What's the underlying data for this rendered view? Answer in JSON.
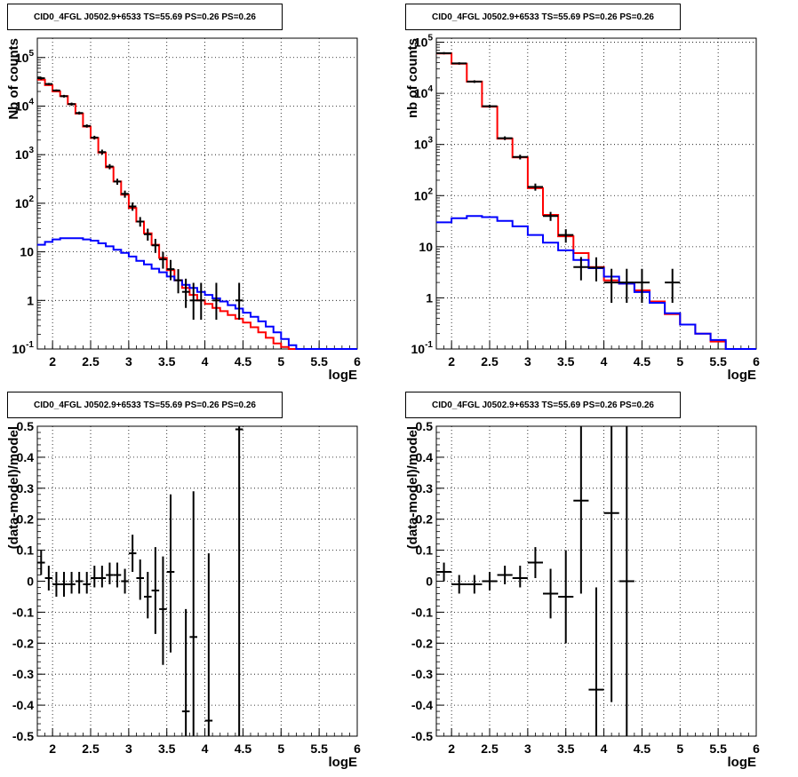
{
  "colors": {
    "data": "#000000",
    "total_model": "#ff0000",
    "component_model": "#0000ff",
    "grid": "#000000"
  },
  "chart_data": [
    {
      "panel": "top-left",
      "type": "line",
      "title": "CID0_4FGL J0502.9+6533 TS=55.69 PS=0.26 PS=0.26",
      "xlabel": "logE",
      "ylabel": "Nb of counts",
      "xlim": [
        1.8,
        6.0
      ],
      "ylim": [
        0.1,
        250000
      ],
      "yscale": "log",
      "grid": true,
      "xticks": [
        "2",
        "2.5",
        "3",
        "3.5",
        "4",
        "4.5",
        "5",
        "5.5",
        "6"
      ],
      "yticks": [
        "10^-1",
        "1",
        "10",
        "10^2",
        "10^3",
        "10^4",
        "10^5"
      ],
      "bin_edges": [
        1.8,
        1.9,
        2.0,
        2.1,
        2.2,
        2.3,
        2.4,
        2.5,
        2.6,
        2.7,
        2.8,
        2.9,
        3.0,
        3.1,
        3.2,
        3.3,
        3.4,
        3.5,
        3.6,
        3.7,
        3.8,
        3.9,
        4.0,
        4.1,
        4.2,
        4.3,
        4.4,
        4.5,
        4.6,
        4.7,
        4.8,
        4.9,
        5.0,
        5.1,
        5.2,
        5.3,
        5.4,
        5.5,
        5.6,
        5.7,
        5.8,
        5.9,
        6.0
      ],
      "series": [
        {
          "kind": "total_model",
          "values": [
            35000,
            27000,
            20000,
            16000,
            11000,
            7000,
            3800,
            2200,
            1100,
            550,
            280,
            150,
            80,
            42,
            24,
            14,
            7.5,
            4.2,
            2.6,
            1.8,
            1.3,
            1.0,
            0.85,
            0.7,
            0.6,
            0.5,
            0.42,
            0.35,
            0.28,
            0.22,
            0.17,
            0.13,
            0.11,
            0.1,
            0.1,
            0.1,
            0.1,
            0.1,
            0.1,
            0.1,
            0.1,
            0.1
          ]
        },
        {
          "kind": "component_model",
          "values": [
            14,
            16,
            18,
            19,
            19,
            19,
            18,
            17,
            15,
            13,
            11,
            9.5,
            8,
            6.5,
            5.5,
            4.5,
            3.8,
            3.1,
            2.6,
            2.1,
            1.8,
            1.5,
            1.3,
            1.1,
            0.95,
            0.8,
            0.68,
            0.56,
            0.46,
            0.37,
            0.29,
            0.22,
            0.16,
            0.12,
            0.1,
            0.1,
            0.1,
            0.1,
            0.1,
            0.1,
            0.1,
            0.1
          ]
        },
        {
          "kind": "data",
          "points": [
            {
              "x": 1.85,
              "y": 37500,
              "lo": 35000,
              "hi": 40000
            },
            {
              "x": 1.95,
              "y": 28500,
              "lo": 27000,
              "hi": 30000
            },
            {
              "x": 2.05,
              "y": 21000,
              "lo": 20000,
              "hi": 22000
            },
            {
              "x": 2.15,
              "y": 16000,
              "lo": 15000,
              "hi": 17000
            },
            {
              "x": 2.25,
              "y": 11000,
              "lo": 10200,
              "hi": 11800
            },
            {
              "x": 2.35,
              "y": 7200,
              "lo": 6700,
              "hi": 7700
            },
            {
              "x": 2.45,
              "y": 3900,
              "lo": 3600,
              "hi": 4200
            },
            {
              "x": 2.55,
              "y": 2250,
              "lo": 2050,
              "hi": 2450
            },
            {
              "x": 2.65,
              "y": 1130,
              "lo": 1000,
              "hi": 1270
            },
            {
              "x": 2.75,
              "y": 570,
              "lo": 500,
              "hi": 640
            },
            {
              "x": 2.85,
              "y": 280,
              "lo": 240,
              "hi": 320
            },
            {
              "x": 2.95,
              "y": 156,
              "lo": 130,
              "hi": 182
            },
            {
              "x": 3.05,
              "y": 86,
              "lo": 70,
              "hi": 104
            },
            {
              "x": 3.15,
              "y": 42,
              "lo": 33,
              "hi": 52
            },
            {
              "x": 3.25,
              "y": 23,
              "lo": 17,
              "hi": 30
            },
            {
              "x": 3.35,
              "y": 13.6,
              "lo": 9.5,
              "hi": 18.5
            },
            {
              "x": 3.45,
              "y": 7,
              "lo": 4.5,
              "hi": 10
            },
            {
              "x": 3.55,
              "y": 4.4,
              "lo": 2.6,
              "hi": 6.8
            },
            {
              "x": 3.65,
              "y": 2.6,
              "lo": 1.4,
              "hi": 4.4
            },
            {
              "x": 3.75,
              "y": 1.5,
              "lo": 0.7,
              "hi": 2.8
            },
            {
              "x": 3.85,
              "y": 1.0,
              "lo": 0.4,
              "hi": 2.3
            },
            {
              "x": 3.95,
              "y": 1.0,
              "lo": 0.4,
              "hi": 2.3
            },
            {
              "x": 4.05,
              "y": 0.1,
              "lo": 0.1,
              "hi": 0.1
            },
            {
              "x": 4.15,
              "y": 1.0,
              "lo": 0.4,
              "hi": 2.3
            },
            {
              "x": 4.25,
              "y": 0.1,
              "lo": 0.1,
              "hi": 0.1
            },
            {
              "x": 4.35,
              "y": 0.1,
              "lo": 0.1,
              "hi": 0.1
            },
            {
              "x": 4.45,
              "y": 1.0,
              "lo": 0.4,
              "hi": 2.3
            }
          ]
        }
      ]
    },
    {
      "panel": "top-right",
      "type": "line",
      "title": "CID0_4FGL J0502.9+6533 TS=55.69 PS=0.26 PS=0.26",
      "xlabel": "logE",
      "ylabel": "nb of counts",
      "xlim": [
        1.8,
        6.0
      ],
      "ylim": [
        0.1,
        120000
      ],
      "yscale": "log",
      "grid": true,
      "xticks": [
        "2",
        "2.5",
        "3",
        "3.5",
        "4",
        "4.5",
        "5",
        "5.5",
        "6"
      ],
      "yticks": [
        "10^-1",
        "1",
        "10",
        "10^2",
        "10^3",
        "10^4",
        "10^5"
      ],
      "bin_edges": [
        1.8,
        2.0,
        2.2,
        2.4,
        2.6,
        2.8,
        3.0,
        3.2,
        3.4,
        3.6,
        3.8,
        4.0,
        4.2,
        4.4,
        4.6,
        4.8,
        5.0,
        5.2,
        5.4,
        5.6,
        5.8,
        6.0
      ],
      "series": [
        {
          "kind": "total_model",
          "values": [
            60000,
            38000,
            17000,
            5500,
            1300,
            560,
            140,
            42,
            16,
            7.5,
            4,
            2.2,
            1.9,
            1.4,
            0.85,
            0.48,
            0.3,
            0.2,
            0.14,
            0.1,
            0.1
          ]
        },
        {
          "kind": "component_model",
          "values": [
            30,
            36,
            40,
            38,
            32,
            25,
            17,
            12,
            8.5,
            5.5,
            3.8,
            2.6,
            1.9,
            1.3,
            0.8,
            0.5,
            0.3,
            0.2,
            0.15,
            0.1,
            0.1
          ]
        },
        {
          "kind": "data",
          "points": [
            {
              "x": 1.9,
              "y": 61000,
              "lo": 58000,
              "hi": 64000
            },
            {
              "x": 2.1,
              "y": 38500,
              "lo": 36500,
              "hi": 40500
            },
            {
              "x": 2.3,
              "y": 17000,
              "lo": 16000,
              "hi": 18000
            },
            {
              "x": 2.5,
              "y": 5600,
              "lo": 5200,
              "hi": 6000
            },
            {
              "x": 2.7,
              "y": 1330,
              "lo": 1220,
              "hi": 1440
            },
            {
              "x": 2.9,
              "y": 570,
              "lo": 510,
              "hi": 630
            },
            {
              "x": 3.1,
              "y": 148,
              "lo": 125,
              "hi": 172
            },
            {
              "x": 3.3,
              "y": 40,
              "lo": 32,
              "hi": 48
            },
            {
              "x": 3.5,
              "y": 17,
              "lo": 12,
              "hi": 22
            },
            {
              "x": 3.7,
              "y": 4,
              "lo": 2.2,
              "hi": 6.3
            },
            {
              "x": 3.9,
              "y": 3.9,
              "lo": 2.1,
              "hi": 6.2
            },
            {
              "x": 4.1,
              "y": 2,
              "lo": 0.8,
              "hi": 3.7
            },
            {
              "x": 4.3,
              "y": 2,
              "lo": 0.8,
              "hi": 3.7
            },
            {
              "x": 4.5,
              "y": 2,
              "lo": 0.8,
              "hi": 3.7
            },
            {
              "x": 4.9,
              "y": 2,
              "lo": 0.8,
              "hi": 3.7
            }
          ]
        }
      ]
    },
    {
      "panel": "bottom-left",
      "type": "scatter",
      "title": "CID0_4FGL J0502.9+6533 TS=55.69 PS=0.26 PS=0.26",
      "xlabel": "logE",
      "ylabel": "(data-model)/model",
      "xlim": [
        1.8,
        6.0
      ],
      "ylim": [
        -0.5,
        0.5
      ],
      "grid": true,
      "xticks": [
        "2",
        "2.5",
        "3",
        "3.5",
        "4",
        "4.5",
        "5",
        "5.5",
        "6"
      ],
      "yticks": [
        "-0.5",
        "-0.4",
        "-0.3",
        "-0.2",
        "-0.1",
        "0",
        "0.1",
        "0.2",
        "0.3",
        "0.4",
        "0.5"
      ],
      "series": [
        {
          "kind": "data",
          "points": [
            {
              "x": 1.85,
              "y": 0.06,
              "lo": 0.02,
              "hi": 0.1
            },
            {
              "x": 1.95,
              "y": 0.01,
              "lo": -0.03,
              "hi": 0.05
            },
            {
              "x": 2.05,
              "y": -0.01,
              "lo": -0.05,
              "hi": 0.03
            },
            {
              "x": 2.15,
              "y": -0.01,
              "lo": -0.05,
              "hi": 0.03
            },
            {
              "x": 2.25,
              "y": -0.01,
              "lo": -0.04,
              "hi": 0.03
            },
            {
              "x": 2.35,
              "y": 0.0,
              "lo": -0.04,
              "hi": 0.03
            },
            {
              "x": 2.45,
              "y": -0.01,
              "lo": -0.04,
              "hi": 0.03
            },
            {
              "x": 2.55,
              "y": 0.01,
              "lo": -0.02,
              "hi": 0.05
            },
            {
              "x": 2.65,
              "y": 0.01,
              "lo": -0.02,
              "hi": 0.05
            },
            {
              "x": 2.75,
              "y": 0.02,
              "lo": -0.01,
              "hi": 0.06
            },
            {
              "x": 2.85,
              "y": 0.02,
              "lo": -0.02,
              "hi": 0.06
            },
            {
              "x": 2.95,
              "y": 0.0,
              "lo": -0.04,
              "hi": 0.04
            },
            {
              "x": 3.05,
              "y": 0.09,
              "lo": 0.03,
              "hi": 0.15
            },
            {
              "x": 3.15,
              "y": 0.01,
              "lo": -0.06,
              "hi": 0.07
            },
            {
              "x": 3.25,
              "y": -0.05,
              "lo": -0.12,
              "hi": 0.03
            },
            {
              "x": 3.35,
              "y": -0.03,
              "lo": -0.17,
              "hi": 0.11
            },
            {
              "x": 3.45,
              "y": -0.09,
              "lo": -0.27,
              "hi": 0.08
            },
            {
              "x": 3.55,
              "y": 0.03,
              "lo": -0.23,
              "hi": 0.28
            },
            {
              "x": 3.75,
              "y": -0.42,
              "lo": -0.5,
              "hi": -0.09
            },
            {
              "x": 3.85,
              "y": -0.18,
              "lo": -0.5,
              "hi": 0.29
            },
            {
              "x": 4.05,
              "y": -0.45,
              "lo": -0.5,
              "hi": 0.09
            },
            {
              "x": 4.45,
              "y": 0.49,
              "lo": -0.5,
              "hi": 0.5
            }
          ]
        }
      ]
    },
    {
      "panel": "bottom-right",
      "type": "scatter",
      "title": "CID0_4FGL J0502.9+6533 TS=55.69 PS=0.26 PS=0.26",
      "xlabel": "logE",
      "ylabel": "(data-model)/model",
      "xlim": [
        1.8,
        6.0
      ],
      "ylim": [
        -0.5,
        0.5
      ],
      "grid": true,
      "xticks": [
        "2",
        "2.5",
        "3",
        "3.5",
        "4",
        "4.5",
        "5",
        "5.5",
        "6"
      ],
      "yticks": [
        "-0.5",
        "-0.4",
        "-0.3",
        "-0.2",
        "-0.1",
        "0",
        "0.1",
        "0.2",
        "0.3",
        "0.4",
        "0.5"
      ],
      "series": [
        {
          "kind": "data",
          "points": [
            {
              "x": 1.9,
              "y": 0.03,
              "lo": 0.0,
              "hi": 0.06
            },
            {
              "x": 2.1,
              "y": -0.01,
              "lo": -0.04,
              "hi": 0.02
            },
            {
              "x": 2.3,
              "y": -0.01,
              "lo": -0.04,
              "hi": 0.02
            },
            {
              "x": 2.5,
              "y": 0.0,
              "lo": -0.03,
              "hi": 0.03
            },
            {
              "x": 2.7,
              "y": 0.02,
              "lo": -0.01,
              "hi": 0.05
            },
            {
              "x": 2.9,
              "y": 0.01,
              "lo": -0.02,
              "hi": 0.05
            },
            {
              "x": 3.1,
              "y": 0.06,
              "lo": 0.01,
              "hi": 0.11
            },
            {
              "x": 3.3,
              "y": -0.04,
              "lo": -0.12,
              "hi": 0.04
            },
            {
              "x": 3.5,
              "y": -0.05,
              "lo": -0.2,
              "hi": 0.1
            },
            {
              "x": 3.7,
              "y": 0.26,
              "lo": -0.04,
              "hi": 0.5
            },
            {
              "x": 3.9,
              "y": -0.35,
              "lo": -0.5,
              "hi": -0.02
            },
            {
              "x": 4.1,
              "y": 0.22,
              "lo": -0.39,
              "hi": 0.5
            },
            {
              "x": 4.3,
              "y": 0.0,
              "lo": -0.5,
              "hi": 0.5
            }
          ]
        }
      ]
    }
  ]
}
